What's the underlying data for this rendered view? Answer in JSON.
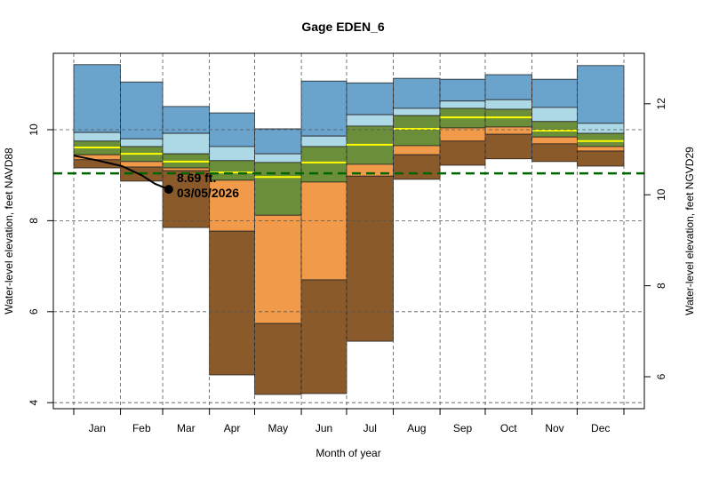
{
  "chart_data": {
    "type": "area",
    "title": "Gage EDEN_6",
    "xlabel": "Month of year",
    "ylabel": "Water-level elevation, feet NAVD88",
    "ylabel_right": "Water-level elevation, feet NGVD29",
    "ylim": [
      3.85,
      11.75
    ],
    "yticks": [
      4,
      6,
      8,
      10
    ],
    "yticks_right": [
      6,
      8,
      10,
      12
    ],
    "right_axis_offset": 1.43,
    "grid": true,
    "categories": [
      "Jan",
      "Feb",
      "Mar",
      "Apr",
      "May",
      "Jun",
      "Jul",
      "Aug",
      "Sep",
      "Oct",
      "Nov",
      "Dec"
    ],
    "month_boundaries_day": [
      0,
      31,
      59,
      90,
      120,
      151,
      181,
      212,
      243,
      273,
      304,
      334,
      365
    ],
    "bands": {
      "max": [
        11.43,
        11.05,
        10.51,
        10.37,
        10.02,
        11.07,
        11.03,
        11.13,
        11.11,
        11.21,
        11.11,
        11.41
      ],
      "p90": [
        9.94,
        9.8,
        9.92,
        9.63,
        9.47,
        9.86,
        10.33,
        10.47,
        10.63,
        10.66,
        10.49,
        10.14
      ],
      "p75": [
        9.75,
        9.63,
        9.47,
        9.32,
        9.28,
        9.63,
        10.08,
        10.31,
        10.47,
        10.45,
        10.18,
        9.92
      ],
      "median": [
        9.61,
        9.47,
        9.3,
        9.06,
        8.96,
        9.28,
        9.67,
        10.02,
        10.27,
        10.27,
        9.98,
        9.75
      ],
      "p25": [
        9.45,
        9.3,
        9.16,
        8.89,
        8.12,
        8.85,
        9.24,
        9.65,
        10.04,
        10.06,
        9.84,
        9.63
      ],
      "p10": [
        9.34,
        9.18,
        9.1,
        7.77,
        5.74,
        6.7,
        8.98,
        9.45,
        9.75,
        9.9,
        9.69,
        9.53
      ],
      "min": [
        9.16,
        8.87,
        7.85,
        4.61,
        4.18,
        4.2,
        5.35,
        8.91,
        9.22,
        9.36,
        9.3,
        9.2
      ]
    },
    "band_colors": {
      "max_p90": "#6aa3cc",
      "p90_p75": "#add8e6",
      "p75_p25": "#6b8e3a",
      "p25_p10": "#f09a4a",
      "p10_min": "#8b5a2b",
      "median": "#ffff00"
    },
    "reference_line": {
      "value": 9.04,
      "color": "#006400",
      "style": "dashed"
    },
    "current_series": {
      "days": [
        0,
        15,
        32,
        45,
        54,
        63
      ],
      "values": [
        9.43,
        9.33,
        9.2,
        9.0,
        8.81,
        8.69
      ],
      "color": "#000000"
    },
    "annotation": {
      "value_label": "8.69 ft.",
      "date_label": "03/05/2026"
    }
  }
}
